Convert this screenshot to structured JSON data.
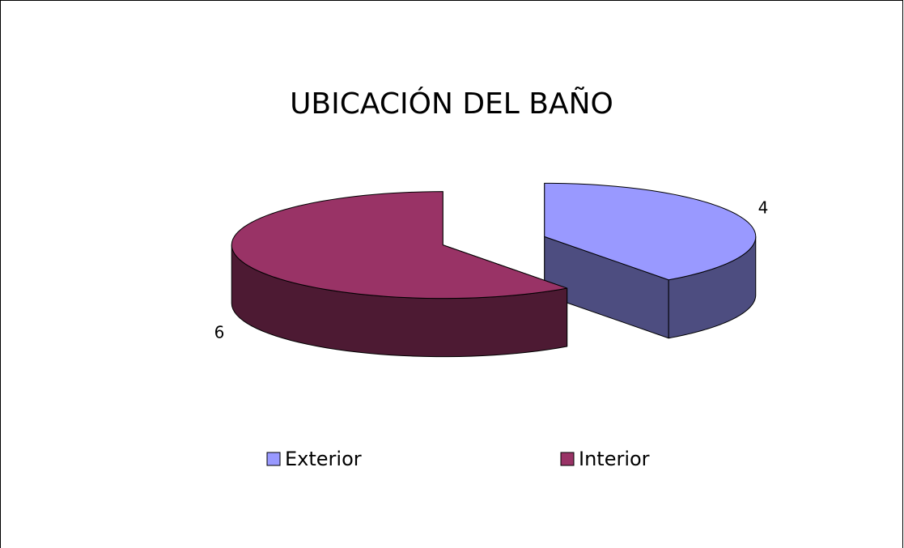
{
  "chart_data": {
    "type": "pie",
    "title": "UBICACIÓN DEL BAÑO",
    "categories": [
      "Exterior",
      "Interior"
    ],
    "values": [
      4,
      6
    ],
    "colors": [
      "#9999ff",
      "#993366"
    ],
    "legend": "bottom"
  }
}
